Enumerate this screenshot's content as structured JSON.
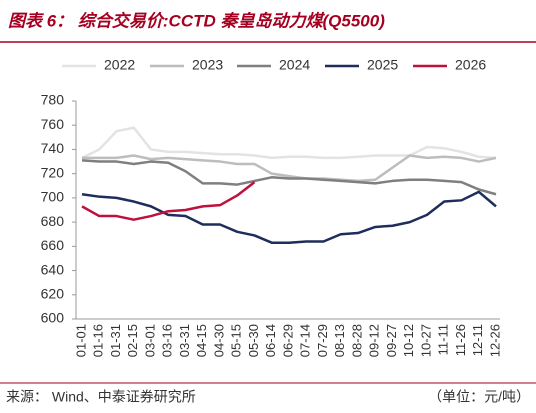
{
  "chart_data": {
    "type": "line",
    "title": "图表 6： 综合交易价:CCTD 秦皇岛动力煤(Q5500)",
    "categories": [
      "01-01",
      "01-16",
      "01-31",
      "02-15",
      "03-01",
      "03-16",
      "03-31",
      "04-15",
      "04-30",
      "05-15",
      "05-30",
      "06-14",
      "06-29",
      "07-14",
      "07-29",
      "08-13",
      "08-28",
      "09-12",
      "09-27",
      "10-12",
      "10-27",
      "11-11",
      "11-26",
      "12-11",
      "12-26"
    ],
    "series": [
      {
        "name": "2022",
        "color": "#e3e3e3",
        "values": [
          733,
          740,
          755,
          758,
          740,
          738,
          738,
          737,
          736,
          736,
          735,
          733,
          734,
          734,
          733,
          733,
          734,
          735,
          735,
          735,
          742,
          741,
          738,
          734,
          733
        ]
      },
      {
        "name": "2023",
        "color": "#bdbdbd",
        "values": [
          733,
          733,
          733,
          735,
          732,
          733,
          732,
          731,
          730,
          728,
          728,
          720,
          718,
          716,
          716,
          715,
          714,
          715,
          725,
          735,
          733,
          734,
          733,
          730,
          733
        ]
      },
      {
        "name": "2024",
        "color": "#7f7f7f",
        "values": [
          731,
          730,
          730,
          728,
          730,
          729,
          722,
          712,
          712,
          711,
          714,
          717,
          716,
          716,
          715,
          714,
          713,
          712,
          714,
          715,
          715,
          714,
          713,
          707,
          703
        ]
      },
      {
        "name": "2025",
        "color": "#1f2d5c",
        "values": [
          703,
          701,
          700,
          697,
          693,
          686,
          685,
          678,
          678,
          672,
          669,
          663,
          663,
          664,
          664,
          670,
          671,
          676,
          677,
          680,
          686,
          697,
          698,
          705,
          693
        ]
      },
      {
        "name": "2026",
        "color": "#c0103c",
        "values": [
          693,
          685,
          685,
          682,
          685,
          689,
          690,
          693,
          694,
          702,
          713,
          null,
          null,
          null,
          null,
          null,
          null,
          null,
          null,
          null,
          null,
          null,
          null,
          null,
          null
        ]
      }
    ],
    "ylim": [
      600,
      780
    ],
    "yticks": [
      600,
      620,
      640,
      660,
      680,
      700,
      720,
      740,
      760,
      780
    ]
  },
  "footer": {
    "source": "来源：   Wind、中泰证券研究所",
    "unit": "（单位：元/吨）"
  }
}
